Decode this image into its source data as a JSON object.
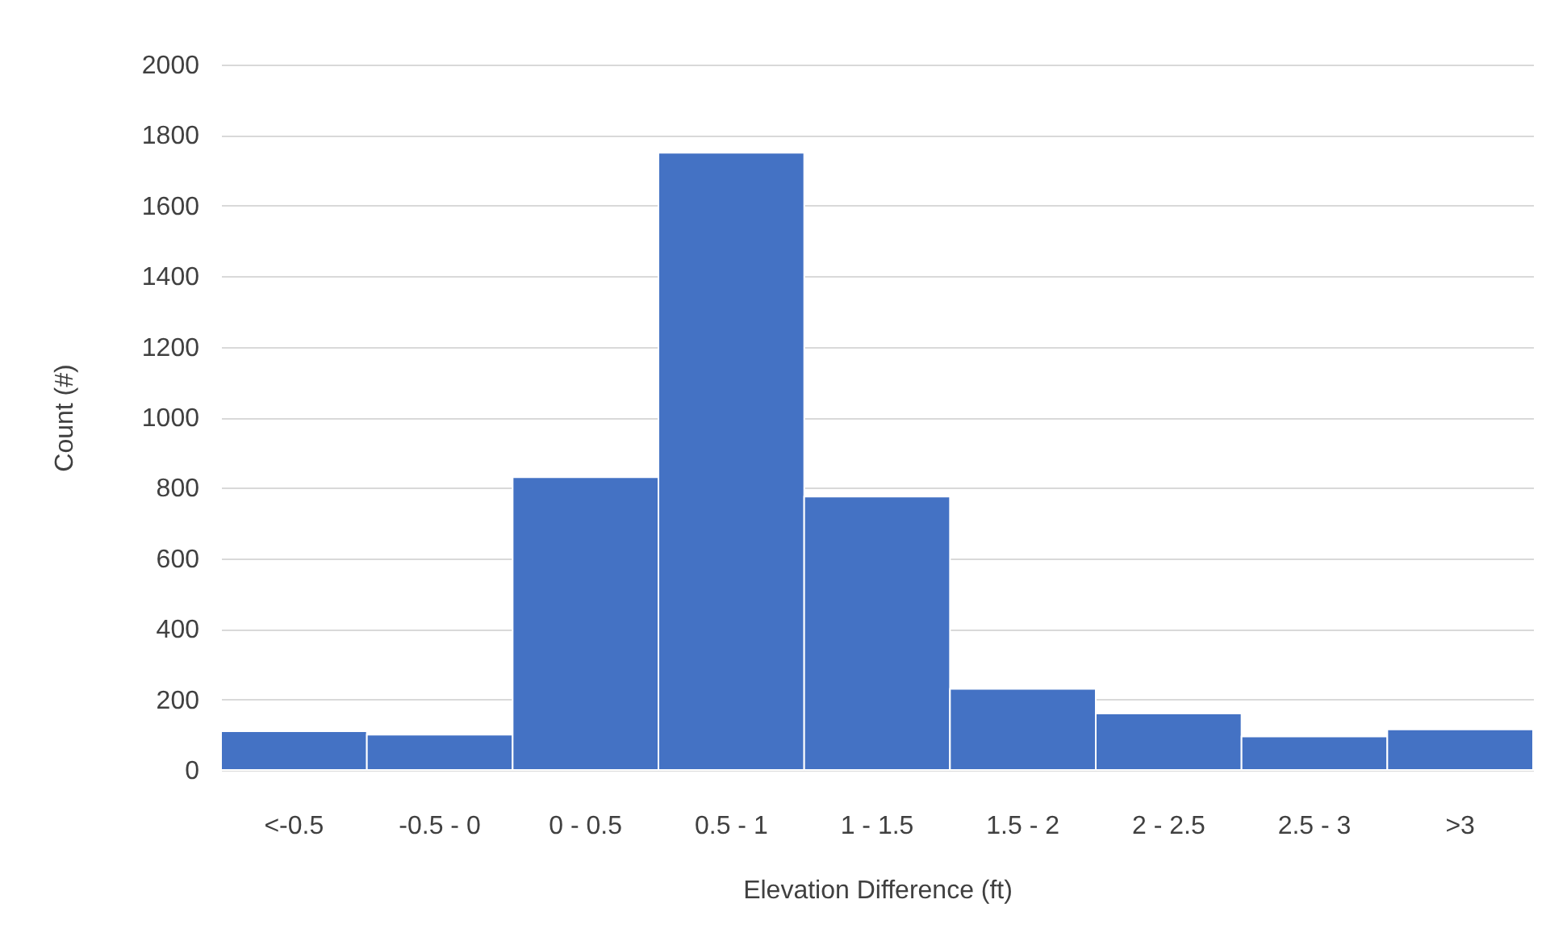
{
  "chart_data": {
    "type": "bar",
    "xlabel": "Elevation Difference (ft)",
    "ylabel": "Count (#)",
    "categories": [
      "<-0.5",
      "-0.5 - 0",
      "0 - 0.5",
      "0.5 - 1",
      "1 - 1.5",
      "1.5 - 2",
      "2 - 2.5",
      "2.5 - 3",
      ">3"
    ],
    "values": [
      110,
      100,
      830,
      1750,
      775,
      230,
      160,
      95,
      115
    ],
    "color": "#4472c4",
    "ylim": [
      0,
      2000
    ],
    "yticks": [
      0,
      200,
      400,
      600,
      800,
      1000,
      1200,
      1400,
      1600,
      1800,
      2000
    ],
    "grid": "y"
  }
}
